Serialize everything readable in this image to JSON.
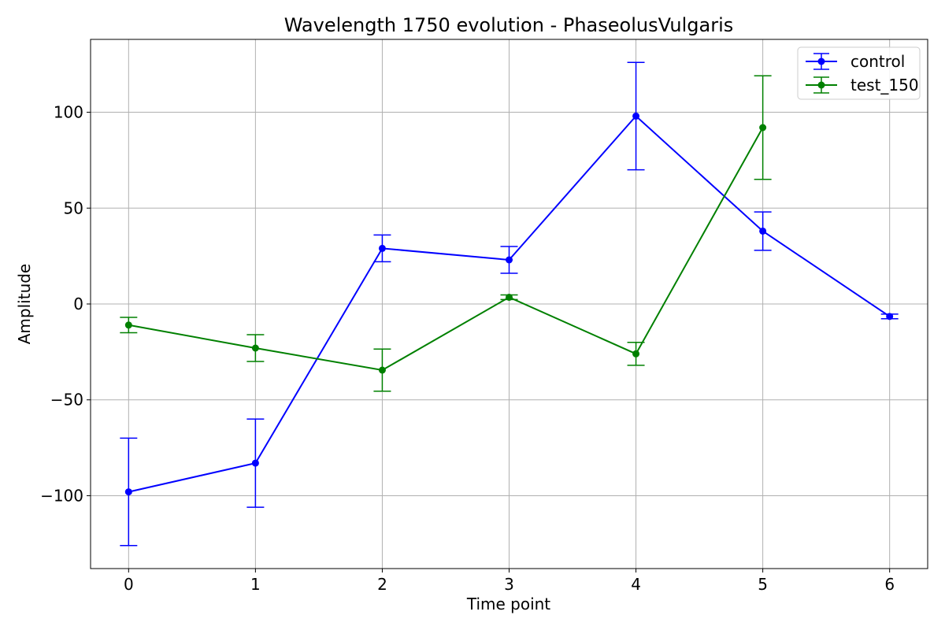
{
  "chart_data": {
    "type": "line",
    "title": "Wavelength 1750 evolution - PhaseolusVulgaris",
    "xlabel": "Time point",
    "ylabel": "Amplitude",
    "xlim": [
      -0.3,
      6.3
    ],
    "ylim": [
      -138,
      138
    ],
    "x_ticks": [
      0,
      1,
      2,
      3,
      4,
      5,
      6
    ],
    "y_ticks": [
      -100,
      -50,
      0,
      50,
      100
    ],
    "y_tick_labels": [
      "−100",
      "−50",
      "0",
      "50",
      "100"
    ],
    "grid": true,
    "legend_position": "top-right",
    "series": [
      {
        "name": "control",
        "color": "#0000ff",
        "x": [
          0,
          1,
          2,
          3,
          4,
          5,
          6
        ],
        "y": [
          -98,
          -83,
          29,
          23,
          98,
          38,
          -6.5
        ],
        "err": [
          28,
          23,
          7,
          7,
          28,
          10,
          1.2
        ]
      },
      {
        "name": "test_150",
        "color": "#008000",
        "x": [
          0,
          1,
          2,
          3,
          4,
          5
        ],
        "y": [
          -11,
          -23,
          -34.5,
          3.5,
          -26,
          92
        ],
        "err": [
          4,
          7,
          11,
          1.2,
          6,
          27
        ]
      }
    ]
  }
}
